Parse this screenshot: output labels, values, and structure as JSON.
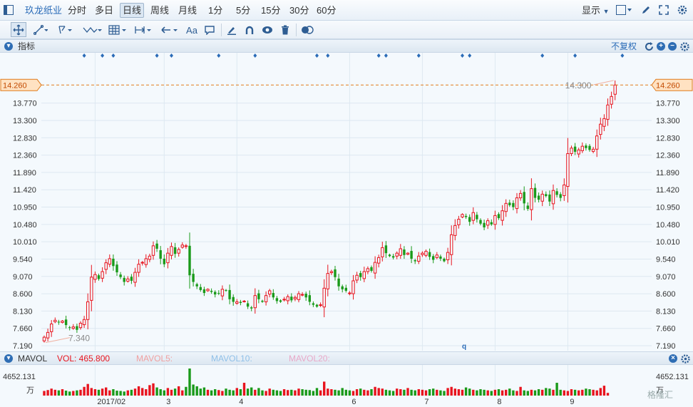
{
  "toolbar": {
    "stock_name": "玖龙纸业",
    "periods": [
      "分时",
      "多日",
      "日线",
      "周线",
      "月线",
      "1分",
      "5分",
      "15分",
      "30分",
      "60分"
    ],
    "active_period": "日线",
    "display_label": "显示",
    "text_tool_label": "Aa"
  },
  "indicator_header": {
    "label": "指标",
    "adjust_label": "不复权"
  },
  "volume_header": {
    "label": "MAVOL",
    "vol": "VOL: 465.800",
    "mavol5": "MAVOL5:",
    "mavol10": "MAVOL10:",
    "mavol20": "MAVOL20:"
  },
  "volume_axis": {
    "max_label": "4652.131",
    "unit_label": "万"
  },
  "watermark": "格隆汇",
  "colors": {
    "up": "#e8141e",
    "down": "#1a9a1a",
    "accent": "#2b6cb8",
    "last_price": "#e07a1a"
  },
  "chart_data": {
    "type": "candlestick",
    "price_axis": {
      "ylim": [
        7.19,
        14.73
      ],
      "ticks": [
        "13.770",
        "13.300",
        "12.830",
        "12.360",
        "11.890",
        "11.420",
        "10.950",
        "10.480",
        "10.010",
        "9.540",
        "9.070",
        "8.600",
        "8.130",
        "7.660",
        "7.190"
      ]
    },
    "last_price": "14.260",
    "annotations": {
      "high": "14.300",
      "low": "7.340"
    },
    "x_labels": [
      {
        "label": "2017/02",
        "i": 14
      },
      {
        "label": "3",
        "i": 33
      },
      {
        "label": "4",
        "i": 53
      },
      {
        "label": "6",
        "i": 84
      },
      {
        "label": "7",
        "i": 104
      },
      {
        "label": "8",
        "i": 124
      },
      {
        "label": "9",
        "i": 144
      }
    ],
    "closes": [
      7.42,
      7.55,
      7.78,
      7.88,
      7.82,
      7.86,
      7.75,
      7.68,
      7.7,
      7.62,
      7.8,
      7.9,
      8.38,
      9.05,
      9.12,
      9.0,
      9.2,
      9.44,
      9.55,
      9.35,
      9.18,
      9.05,
      8.92,
      9.0,
      8.95,
      9.18,
      9.4,
      9.45,
      9.55,
      9.62,
      9.9,
      9.82,
      9.55,
      9.4,
      9.7,
      9.88,
      9.68,
      9.8,
      9.92,
      9.9,
      9.1,
      8.92,
      8.8,
      8.7,
      8.62,
      8.72,
      8.65,
      8.58,
      8.6,
      8.72,
      8.68,
      8.45,
      8.38,
      8.38,
      8.35,
      8.4,
      8.25,
      8.2,
      8.55,
      8.45,
      8.38,
      8.55,
      8.68,
      8.5,
      8.4,
      8.38,
      8.45,
      8.52,
      8.42,
      8.5,
      8.6,
      8.58,
      8.5,
      8.38,
      8.3,
      8.25,
      8.3,
      8.75,
      9.15,
      9.2,
      9.05,
      8.8,
      8.72,
      8.68,
      8.62,
      8.95,
      9.1,
      9.05,
      9.2,
      9.28,
      9.22,
      9.45,
      9.58,
      9.85,
      9.7,
      9.62,
      9.58,
      9.7,
      9.82,
      9.65,
      9.7,
      9.55,
      9.48,
      9.62,
      9.7,
      9.75,
      9.6,
      9.52,
      9.65,
      9.55,
      9.48,
      9.72,
      10.2,
      10.45,
      10.62,
      10.75,
      10.68,
      10.55,
      10.8,
      10.62,
      10.5,
      10.4,
      10.58,
      10.48,
      10.72,
      10.65,
      10.85,
      11.05,
      11.0,
      10.95,
      11.2,
      11.32,
      11.05,
      10.9,
      11.45,
      11.2,
      11.15,
      11.3,
      11.25,
      11.1,
      11.4,
      11.28,
      11.2,
      11.55,
      12.4,
      12.55,
      12.45,
      12.5,
      12.6,
      12.55,
      12.5,
      12.52,
      12.88,
      13.2,
      13.35,
      13.72,
      13.95,
      14.26
    ],
    "volume": {
      "max": 4652.131,
      "values": [
        800,
        950,
        1200,
        1000,
        900,
        1100,
        850,
        700,
        800,
        900,
        1000,
        1500,
        2000,
        1300,
        1100,
        1000,
        1200,
        1400,
        900,
        1100,
        850,
        800,
        700,
        900,
        1000,
        1200,
        1600,
        1300,
        1100,
        1800,
        2100,
        1400,
        1100,
        900,
        1300,
        1000,
        1200,
        1600,
        900,
        1500,
        4652,
        1900,
        1600,
        1200,
        1400,
        1000,
        900,
        1100,
        950,
        800,
        1200,
        1000,
        900,
        1300,
        1100,
        2200,
        1200,
        1400,
        1000,
        1300,
        900,
        800,
        1200,
        1000,
        900,
        800,
        1100,
        950,
        1000,
        900,
        1200,
        1100,
        1000,
        950,
        800,
        1300,
        900,
        2400,
        1200,
        1100,
        1000,
        900,
        1300,
        1000,
        900,
        800,
        1100,
        1200,
        1000,
        900,
        1100,
        1500,
        1300,
        1200,
        1000,
        900,
        800,
        1200,
        1100,
        1000,
        1300,
        1000,
        900,
        1100,
        1000,
        900,
        1100,
        1200,
        1000,
        900,
        800,
        1300,
        1500,
        1200,
        1100,
        1000,
        1400,
        1200,
        1000,
        900,
        1100,
        1000,
        900,
        800,
        1000,
        1100,
        900,
        1000,
        1200,
        900,
        800,
        1500,
        900,
        800,
        1000,
        900,
        1100,
        1000,
        1300,
        1200,
        1000,
        2200,
        1000,
        900,
        800,
        1100,
        1000,
        900,
        1000,
        1200,
        1100,
        1000,
        900,
        1300,
        1700,
        465.8
      ]
    }
  }
}
